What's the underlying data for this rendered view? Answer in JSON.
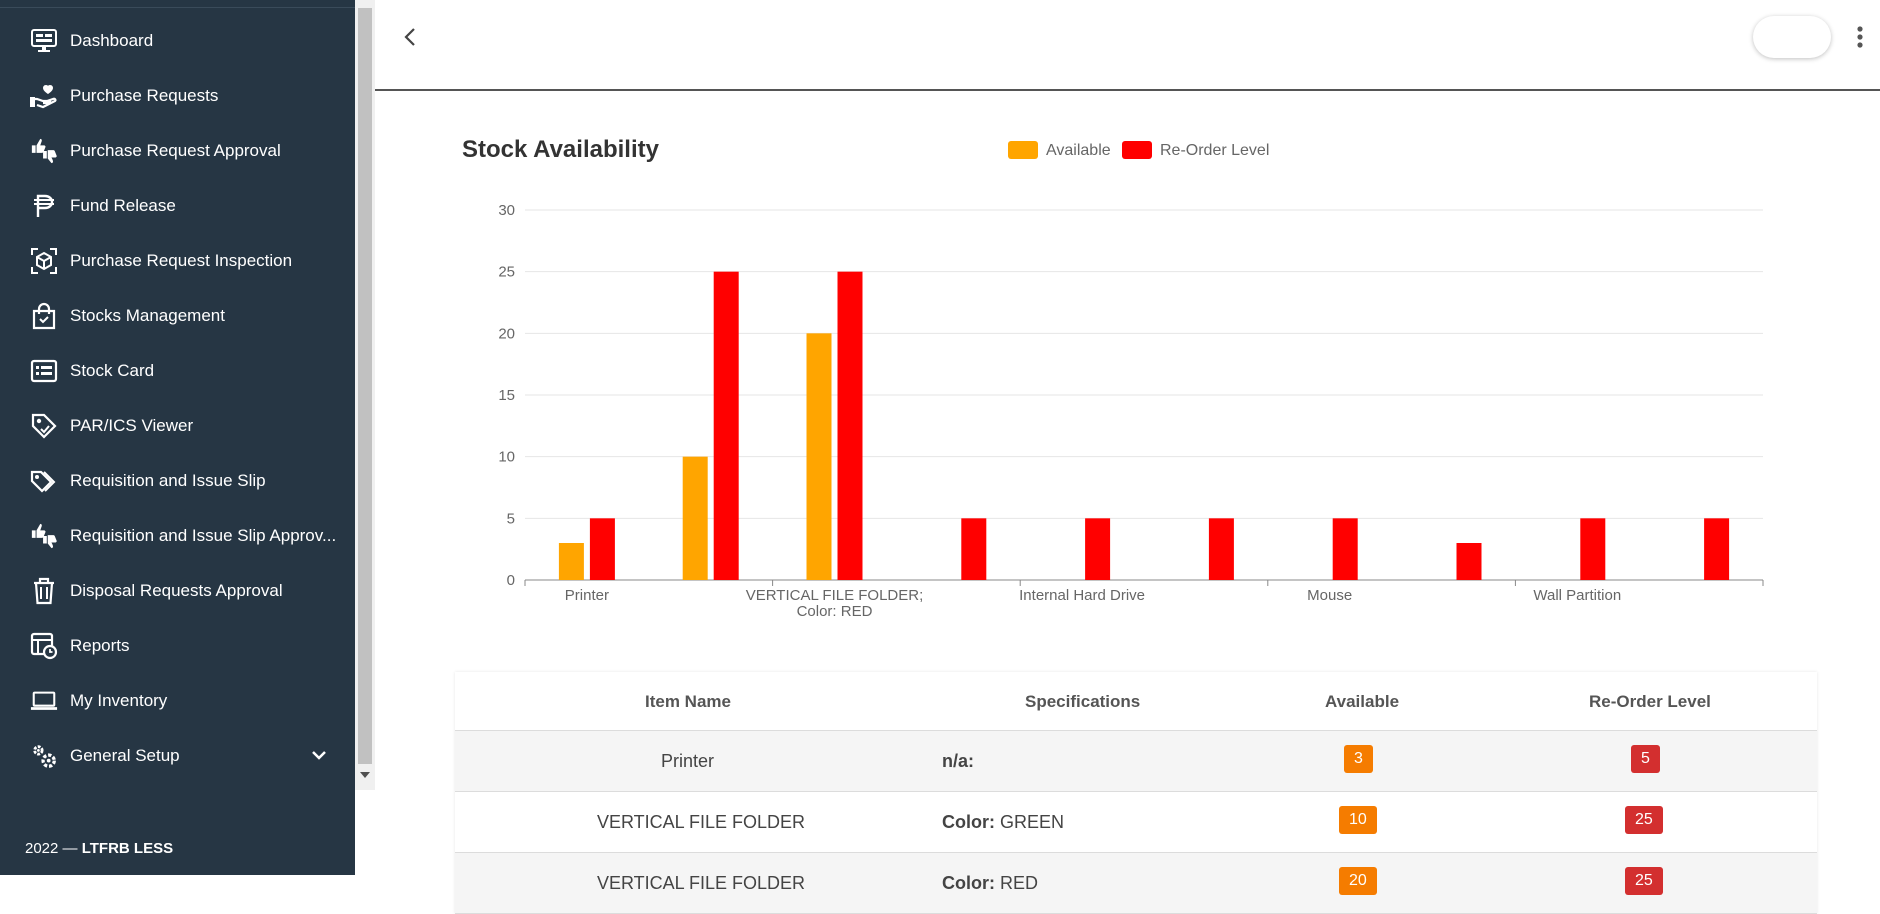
{
  "sidebar": {
    "items": [
      {
        "label": "Dashboard",
        "icon": "monitor-icon"
      },
      {
        "label": "Purchase Requests",
        "icon": "hand-heart-icon"
      },
      {
        "label": "Purchase Request Approval",
        "icon": "thumbs-icon"
      },
      {
        "label": "Fund Release",
        "icon": "peso-icon"
      },
      {
        "label": "Purchase Request Inspection",
        "icon": "cube-scan-icon"
      },
      {
        "label": "Stocks Management",
        "icon": "shopping-bag-icon"
      },
      {
        "label": "Stock Card",
        "icon": "card-icon"
      },
      {
        "label": "PAR/ICS Viewer",
        "icon": "tag-icon"
      },
      {
        "label": "Requisition and Issue Slip",
        "icon": "tags-icon"
      },
      {
        "label": "Requisition and Issue Slip Approv...",
        "icon": "thumbs-icon"
      },
      {
        "label": "Disposal Requests Approval",
        "icon": "trash-icon"
      },
      {
        "label": "Reports",
        "icon": "report-clock-icon"
      },
      {
        "label": "My Inventory",
        "icon": "laptop-icon"
      },
      {
        "label": "General Setup",
        "icon": "gears-icon"
      }
    ],
    "footer_year": "2022 —",
    "footer_brand": "LTFRB LESS"
  },
  "colors": {
    "sidebar_bg": "#263644",
    "available": "#FFA500",
    "reorder": "#FF0000",
    "badge_orange": "#f57c00",
    "badge_red": "#d32f2f"
  },
  "chart_data": {
    "type": "bar",
    "title": "Stock Availability",
    "legend": [
      "Available",
      "Re-Order Level"
    ],
    "legend_position": "top",
    "ylim": [
      0,
      30
    ],
    "yticks": [
      0,
      5,
      10,
      15,
      20,
      25,
      30
    ],
    "tick_labels": [
      "Printer",
      "VERTICAL FILE FOLDER; Color: RED",
      "Internal Hard Drive",
      "Mouse",
      "Wall Partition"
    ],
    "series": [
      {
        "name": "Available",
        "values": [
          3,
          10,
          20,
          0,
          0,
          0,
          0,
          0,
          0,
          0
        ]
      },
      {
        "name": "Re-Order Level",
        "values": [
          5,
          25,
          25,
          5,
          5,
          5,
          5,
          3,
          5,
          5
        ]
      }
    ],
    "grid": true
  },
  "table": {
    "headers": [
      "Item Name",
      "Specifications",
      "Available",
      "Re-Order Level"
    ],
    "rows": [
      {
        "item": "Printer",
        "spec_label": "n/a:",
        "spec_value": "",
        "available": "3",
        "reorder": "5"
      },
      {
        "item": "VERTICAL FILE FOLDER",
        "spec_label": "Color:",
        "spec_value": "GREEN",
        "available": "10",
        "reorder": "25"
      },
      {
        "item": "VERTICAL FILE FOLDER",
        "spec_label": "Color:",
        "spec_value": "RED",
        "available": "20",
        "reorder": "25"
      }
    ]
  }
}
